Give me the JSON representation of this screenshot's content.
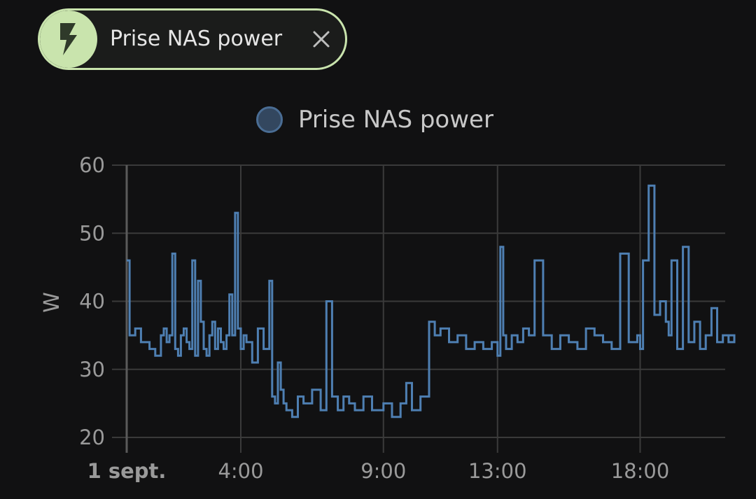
{
  "chip": {
    "label": "Prise NAS power",
    "icon": "lightning-bolt-icon",
    "close_icon": "close-icon",
    "accent_color": "#c9e4ad"
  },
  "chart_data": {
    "type": "line",
    "title": "",
    "legend": {
      "position": "top-center",
      "entries": [
        "Prise NAS power"
      ]
    },
    "series": [
      {
        "name": "Prise NAS power",
        "color": "#4e7fb2",
        "line_style": "step",
        "x_hours": [
          0.0,
          0.1,
          0.3,
          0.5,
          0.8,
          1.0,
          1.2,
          1.3,
          1.4,
          1.5,
          1.6,
          1.7,
          1.8,
          1.9,
          2.0,
          2.1,
          2.2,
          2.3,
          2.4,
          2.5,
          2.6,
          2.7,
          2.8,
          2.9,
          3.0,
          3.1,
          3.2,
          3.3,
          3.4,
          3.5,
          3.6,
          3.7,
          3.8,
          3.9,
          4.0,
          4.1,
          4.2,
          4.4,
          4.6,
          4.8,
          5.0,
          5.1,
          5.2,
          5.3,
          5.4,
          5.5,
          5.6,
          5.8,
          6.0,
          6.2,
          6.5,
          6.8,
          7.0,
          7.2,
          7.4,
          7.6,
          7.8,
          8.0,
          8.3,
          8.6,
          9.0,
          9.3,
          9.6,
          9.8,
          10.0,
          10.3,
          10.6,
          10.8,
          11.0,
          11.3,
          11.6,
          11.9,
          12.2,
          12.5,
          12.8,
          13.0,
          13.1,
          13.2,
          13.3,
          13.5,
          13.7,
          13.9,
          14.1,
          14.3,
          14.6,
          14.9,
          15.2,
          15.5,
          15.8,
          16.1,
          16.4,
          16.7,
          17.0,
          17.3,
          17.6,
          17.9,
          18.0,
          18.1,
          18.3,
          18.5,
          18.7,
          18.9,
          19.0,
          19.1,
          19.3,
          19.5,
          19.7,
          19.9,
          20.1,
          20.3,
          20.5,
          20.7,
          20.9,
          21.1,
          21.3
        ],
        "values": [
          46,
          35,
          36,
          34,
          33,
          32,
          35,
          36,
          34,
          35,
          47,
          33,
          32,
          35,
          36,
          34,
          33,
          46,
          32,
          43,
          37,
          33,
          32,
          35,
          37,
          33,
          36,
          34,
          33,
          35,
          41,
          35,
          53,
          36,
          33,
          35,
          34,
          31,
          36,
          33,
          43,
          26,
          25,
          31,
          27,
          25,
          24,
          23,
          26,
          25,
          27,
          24,
          40,
          26,
          24,
          26,
          25,
          24,
          26,
          24,
          25,
          23,
          25,
          28,
          24,
          26,
          37,
          35,
          36,
          34,
          35,
          33,
          34,
          33,
          34,
          32,
          48,
          35,
          33,
          35,
          34,
          36,
          35,
          46,
          35,
          33,
          35,
          34,
          33,
          36,
          35,
          34,
          33,
          47,
          34,
          35,
          33,
          46,
          57,
          38,
          40,
          37,
          35,
          46,
          33,
          48,
          34,
          37,
          33,
          35,
          39,
          34,
          35,
          34,
          35
        ]
      }
    ],
    "x_ticks": [
      {
        "label": "1 sept.",
        "hour": 0,
        "bold": true
      },
      {
        "label": "4:00",
        "hour": 4
      },
      {
        "label": "9:00",
        "hour": 9
      },
      {
        "label": "13:00",
        "hour": 13
      },
      {
        "label": "18:00",
        "hour": 18
      }
    ],
    "y_ticks": [
      20,
      30,
      40,
      50,
      60
    ],
    "ylim": [
      20,
      60
    ],
    "xlim_hours": [
      0,
      21.3
    ],
    "ylabel": "W",
    "xlabel": "",
    "grid": true
  }
}
